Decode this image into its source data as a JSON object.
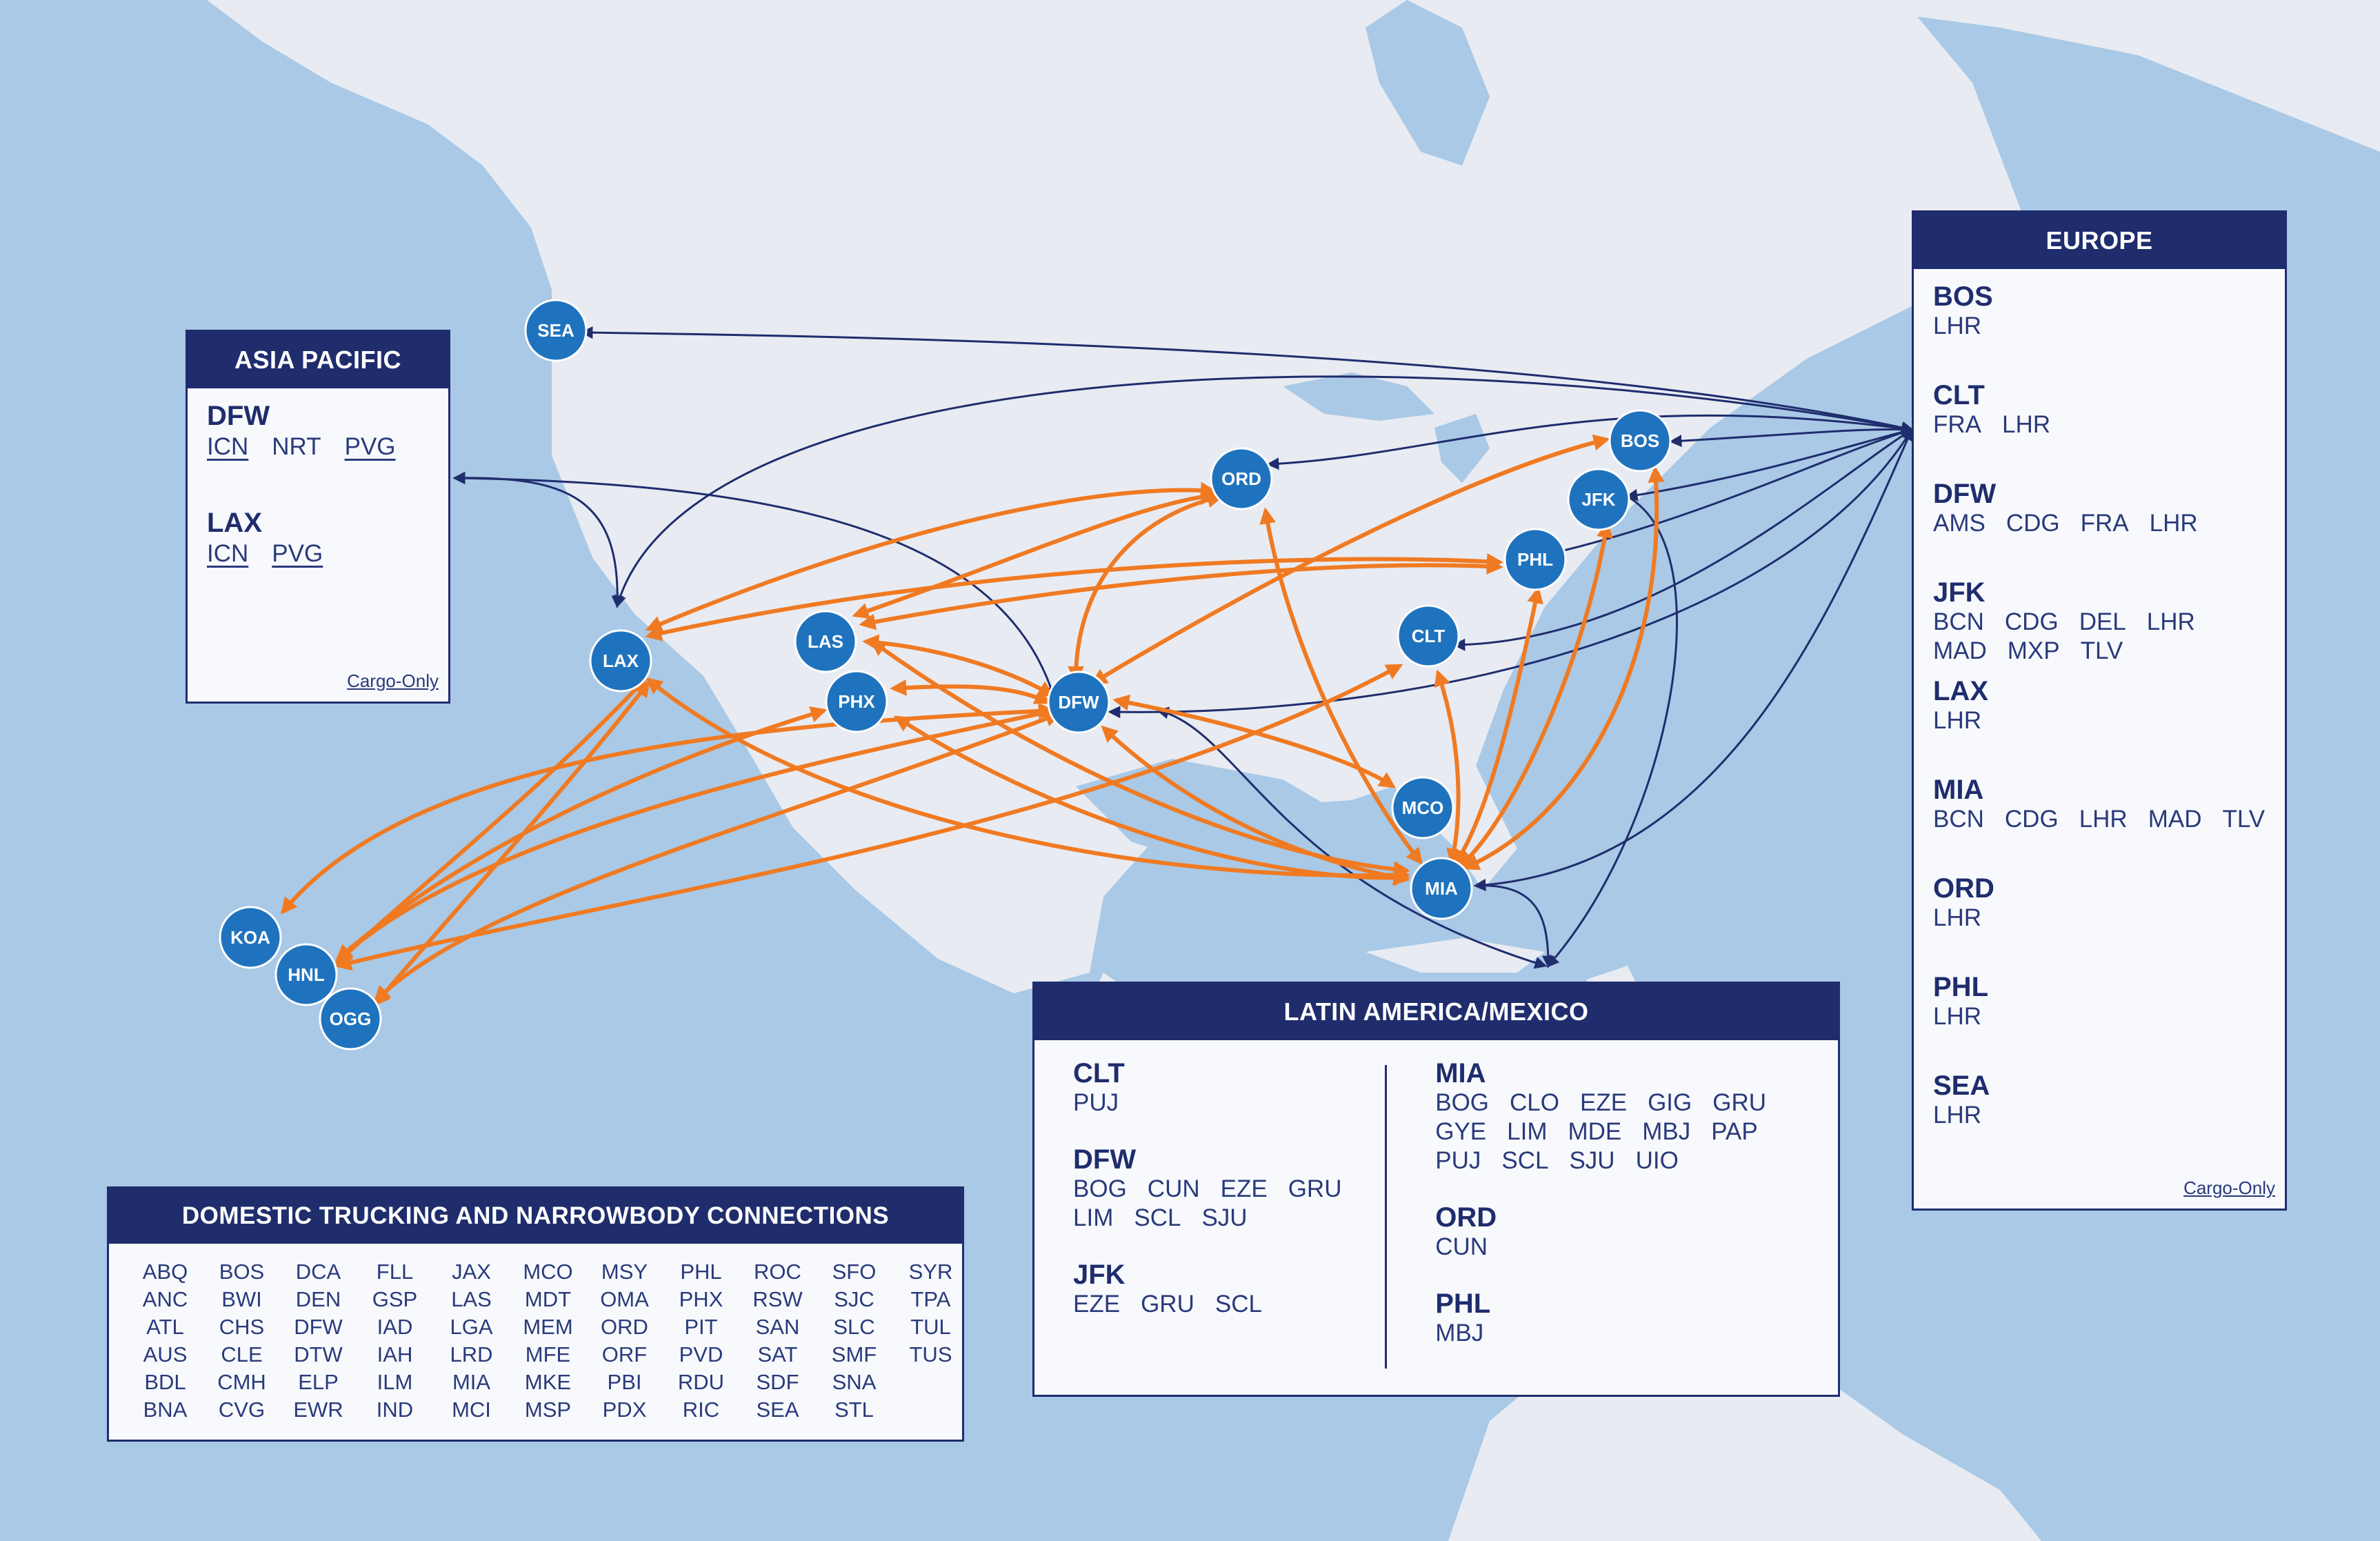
{
  "colors": {
    "ocean": "#a9c9e6",
    "land": "#e8ebf2",
    "hub": "#1f73be",
    "navy": "#1f2d6d",
    "widebody": "#f07a22"
  },
  "hubs": [
    "SEA",
    "ORD",
    "BOS",
    "JFK",
    "PHL",
    "CLT",
    "LAX",
    "LAS",
    "PHX",
    "DFW",
    "MCO",
    "MIA",
    "KOA",
    "HNL",
    "OGG"
  ],
  "asia_pacific": {
    "title": "ASIA PACIFIC",
    "groups": [
      {
        "hub": "DFW",
        "codes": [
          "ICN",
          "NRT",
          "PVG"
        ]
      },
      {
        "hub": "LAX",
        "codes": [
          "ICN",
          "PVG"
        ]
      }
    ],
    "note": "Cargo-Only"
  },
  "europe": {
    "title": "EUROPE",
    "groups": [
      {
        "hub": "BOS",
        "codes": [
          "LHR"
        ]
      },
      {
        "hub": "CLT",
        "codes": [
          "FRA",
          "LHR"
        ]
      },
      {
        "hub": "DFW",
        "codes": [
          "AMS",
          "CDG",
          "FRA",
          "LHR"
        ]
      },
      {
        "hub": "JFK",
        "codes": [
          "BCN",
          "CDG",
          "DEL",
          "LHR",
          "MAD",
          "MXP",
          "TLV"
        ]
      },
      {
        "hub": "LAX",
        "codes": [
          "LHR"
        ]
      },
      {
        "hub": "MIA",
        "codes": [
          "BCN",
          "CDG",
          "LHR",
          "MAD",
          "TLV"
        ]
      },
      {
        "hub": "ORD",
        "codes": [
          "LHR"
        ]
      },
      {
        "hub": "PHL",
        "codes": [
          "LHR"
        ]
      },
      {
        "hub": "SEA",
        "codes": [
          "LHR"
        ]
      }
    ],
    "note": "Cargo-Only"
  },
  "latin_america": {
    "title": "LATIN AMERICA/MEXICO",
    "left_groups": [
      {
        "hub": "CLT",
        "codes": [
          "PUJ"
        ]
      },
      {
        "hub": "DFW",
        "codes": [
          "BOG",
          "CUN",
          "EZE",
          "GRU",
          "LIM",
          "SCL",
          "SJU"
        ]
      },
      {
        "hub": "JFK",
        "codes": [
          "EZE",
          "GRU",
          "SCL"
        ]
      }
    ],
    "right_groups": [
      {
        "hub": "MIA",
        "codes": [
          "BOG",
          "CLO",
          "EZE",
          "GIG",
          "GRU",
          "GYE",
          "LIM",
          "MDE",
          "MBJ",
          "PAP",
          "PUJ",
          "SCL",
          "SJU",
          "UIO"
        ]
      },
      {
        "hub": "ORD",
        "codes": [
          "CUN"
        ]
      },
      {
        "hub": "PHL",
        "codes": [
          "MBJ"
        ]
      }
    ]
  },
  "domestic": {
    "title": "DOMESTIC TRUCKING AND NARROWBODY CONNECTIONS",
    "codes": [
      "ABQ",
      "BOS",
      "DCA",
      "FLL",
      "JAX",
      "MCO",
      "MSY",
      "PHL",
      "ROC",
      "SFO",
      "SYR",
      "ANC",
      "BWI",
      "DEN",
      "GSP",
      "LAS",
      "MDT",
      "OMA",
      "PHX",
      "RSW",
      "SJC",
      "TPA",
      "ATL",
      "CHS",
      "DFW",
      "IAD",
      "LGA",
      "MEM",
      "ORD",
      "PIT",
      "SAN",
      "SLC",
      "TUL",
      "AUS",
      "CLE",
      "DTW",
      "IAH",
      "LRD",
      "MFE",
      "ORF",
      "PVD",
      "SAT",
      "SMF",
      "TUS",
      "BDL",
      "CMH",
      "ELP",
      "ILM",
      "MIA",
      "MKE",
      "PBI",
      "RDU",
      "SDF",
      "SNA",
      "",
      "BNA",
      "CVG",
      "EWR",
      "IND",
      "MCI",
      "MSP",
      "PDX",
      "RIC",
      "SEA",
      "STL",
      ""
    ]
  }
}
